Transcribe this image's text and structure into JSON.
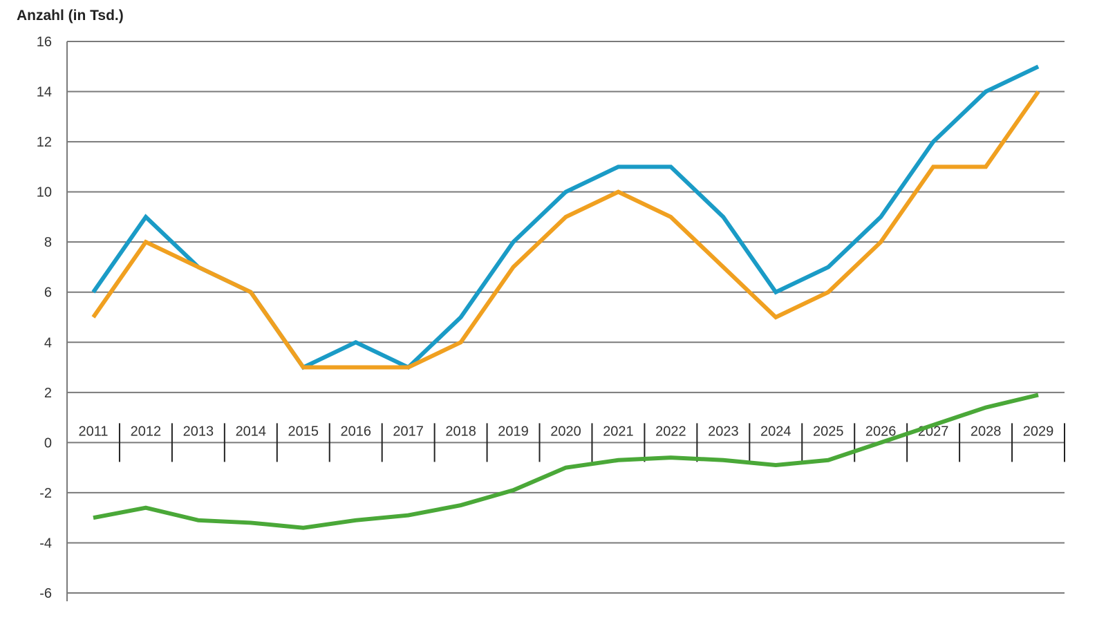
{
  "chart_data": {
    "type": "line",
    "title": "",
    "xlabel": "",
    "ylabel": "Anzahl (in Tsd.)",
    "ylim": [
      -6,
      16
    ],
    "yticks": [
      16,
      14,
      12,
      10,
      8,
      6,
      4,
      2,
      0,
      -2,
      -4,
      -6
    ],
    "grid": true,
    "categories": [
      "2011",
      "2012",
      "2013",
      "2014",
      "2015",
      "2016",
      "2017",
      "2018",
      "2019",
      "2020",
      "2021",
      "2022",
      "2023",
      "2024",
      "2025",
      "2026",
      "2027",
      "2028",
      "2029"
    ],
    "series": [
      {
        "color": "#1a9bc6",
        "values": [
          6,
          9,
          7,
          6,
          3,
          4,
          3,
          5,
          8,
          10,
          11,
          11,
          9,
          6,
          7,
          9,
          12,
          14,
          15
        ]
      },
      {
        "color": "#f0a020",
        "values": [
          5,
          8,
          7,
          6,
          3,
          3,
          3,
          4,
          7,
          9,
          10,
          9,
          7,
          5,
          6,
          8,
          11,
          11,
          14
        ]
      },
      {
        "color": "#4aa838",
        "values": [
          -3,
          -2.6,
          -3.1,
          -3.2,
          -3.4,
          -3.1,
          -2.9,
          -2.5,
          -1.9,
          -1.0,
          -0.7,
          -0.6,
          -0.7,
          -0.9,
          -0.7,
          0,
          0.7,
          1.4,
          1.9
        ]
      }
    ]
  }
}
